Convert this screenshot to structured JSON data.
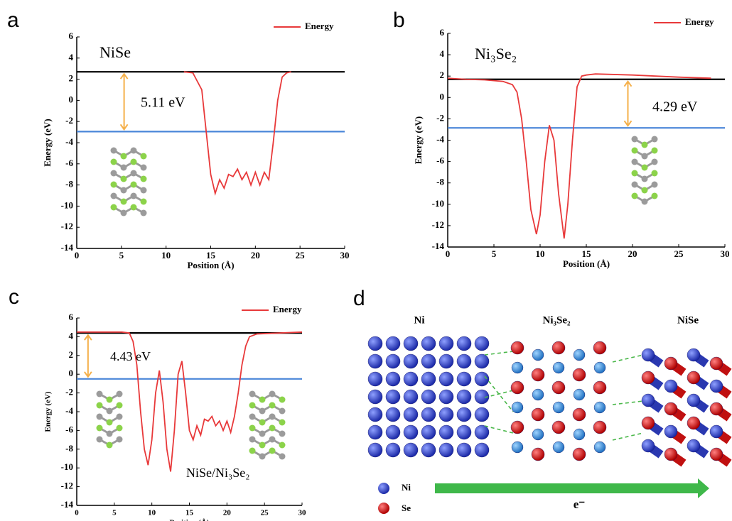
{
  "chart_data": [
    {
      "panel": "a",
      "type": "line",
      "xlabel": "Position (Å)",
      "ylabel": "Energy (eV)",
      "xlim": [
        0,
        30
      ],
      "xticks": [
        0,
        5,
        10,
        15,
        20,
        25,
        30
      ],
      "ylim": [
        -14,
        6
      ],
      "yticks": [
        -14,
        -12,
        -10,
        -8,
        -6,
        -4,
        -2,
        0,
        2,
        4,
        6
      ],
      "x": [
        12,
        13,
        14,
        14.5,
        15,
        15.5,
        16,
        16.5,
        17,
        17.5,
        18,
        18.5,
        19,
        19.5,
        20,
        20.5,
        21,
        21.5,
        22,
        22.5,
        23,
        23.5,
        24
      ],
      "series": [
        {
          "name": "Energy",
          "color": "#e8393a",
          "values": [
            2.7,
            2.6,
            1,
            -3,
            -7,
            -8.8,
            -7.5,
            -8.3,
            -7,
            -7.2,
            -6.5,
            -7.5,
            -6.8,
            -8,
            -6.8,
            -8,
            -6.8,
            -7.5,
            -4,
            0,
            2.2,
            2.6,
            2.7
          ]
        }
      ],
      "hlines": [
        {
          "value": 2.7,
          "color": "#000000"
        },
        {
          "value": -2.95,
          "color": "#4a86d8"
        }
      ],
      "annotations": [
        "NiSe",
        "5.11 eV"
      ]
    },
    {
      "panel": "b",
      "type": "line",
      "xlabel": "Position (Å)",
      "ylabel": "Energy (eV)",
      "xlim": [
        0,
        30
      ],
      "xticks": [
        0,
        5,
        10,
        15,
        20,
        25,
        30
      ],
      "ylim": [
        -14,
        6
      ],
      "yticks": [
        -14,
        -12,
        -10,
        -8,
        -6,
        -4,
        -2,
        0,
        2,
        4,
        6
      ],
      "x": [
        0,
        2,
        4,
        6,
        7,
        7.5,
        8,
        8.5,
        9,
        9.6,
        10,
        10.5,
        11,
        11.5,
        12,
        12.6,
        13,
        13.5,
        14,
        14.5,
        15,
        16,
        20,
        25,
        28.5
      ],
      "series": [
        {
          "name": "Energy",
          "color": "#e8393a",
          "values": [
            1.8,
            1.7,
            1.65,
            1.5,
            1.2,
            0.5,
            -2,
            -6,
            -10.5,
            -12.8,
            -11,
            -6,
            -2.6,
            -4,
            -9,
            -13.2,
            -10,
            -4,
            1,
            2,
            2.1,
            2.2,
            2.1,
            1.9,
            1.8
          ]
        }
      ],
      "hlines": [
        {
          "value": 1.7,
          "color": "#000000"
        },
        {
          "value": -2.85,
          "color": "#4a86d8"
        }
      ],
      "annotations": [
        "Ni₃Se₂",
        "4.29 eV"
      ]
    },
    {
      "panel": "c",
      "type": "line",
      "xlabel": "Position (Å)",
      "ylabel": "Energy (eV)",
      "xlim": [
        0,
        30
      ],
      "xticks": [
        0,
        5,
        10,
        15,
        20,
        25,
        30
      ],
      "ylim": [
        -14,
        6
      ],
      "yticks": [
        -14,
        -12,
        -10,
        -8,
        -6,
        -4,
        -2,
        0,
        2,
        4,
        6
      ],
      "x": [
        0,
        6,
        7,
        7.5,
        8,
        8.5,
        9,
        9.5,
        10,
        10.5,
        11,
        11.5,
        12,
        12.5,
        13,
        13.5,
        14,
        14.5,
        15,
        15.5,
        16,
        16.5,
        17,
        17.5,
        18,
        18.5,
        19,
        19.5,
        20,
        20.5,
        21,
        21.5,
        22,
        22.5,
        23,
        24,
        30
      ],
      "series": [
        {
          "name": "Energy",
          "color": "#e8393a",
          "values": [
            4.5,
            4.5,
            4.4,
            3.5,
            1,
            -4,
            -8,
            -9.7,
            -7,
            -2,
            0.4,
            -3,
            -8,
            -10.4,
            -6,
            0,
            1.4,
            -2,
            -6,
            -7,
            -5.5,
            -6.5,
            -4.8,
            -5,
            -4.5,
            -5.5,
            -5,
            -6,
            -5,
            -6.2,
            -4.5,
            -2,
            1,
            3,
            4,
            4.3,
            4.5
          ]
        }
      ],
      "hlines": [
        {
          "value": 4.4,
          "color": "#000000"
        },
        {
          "value": -0.5,
          "color": "#4a86d8"
        }
      ],
      "annotations": [
        "4.43 eV",
        "NiSe/Ni₃Se₂"
      ]
    }
  ],
  "diagram": {
    "panel": "d",
    "titles": [
      "Ni",
      "Ni₃Se₂",
      "NiSe"
    ],
    "legend": [
      "Ni",
      "Se"
    ],
    "arrow_label": "e⁻"
  }
}
